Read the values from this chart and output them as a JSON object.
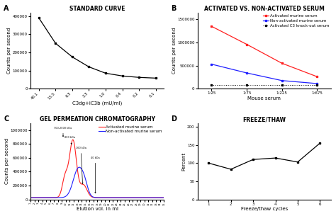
{
  "panel_A": {
    "title": "STANDARD CURVE",
    "xlabel": "C3dg+iC3b (mU/ml)",
    "ylabel": "Counts per second",
    "x_positions": [
      0,
      1,
      2,
      3,
      4,
      5,
      6,
      7
    ],
    "x_labels": [
      "40.1",
      "13.5",
      "6.5",
      "2.5",
      "1.0",
      "0.4",
      "0.2",
      "0.1"
    ],
    "y": [
      390000,
      250000,
      175000,
      120000,
      85000,
      70000,
      62000,
      58000
    ],
    "yticks": [
      0,
      100000,
      200000,
      300000,
      400000
    ],
    "ytick_labels": [
      "0",
      "100000",
      "200000",
      "300000",
      "400000"
    ],
    "ylim": [
      0,
      420000
    ],
    "color": "#000000"
  },
  "panel_B": {
    "title": "ACTIVATED VS. NON-ACTIVATED SERUM",
    "xlabel": "Mouse serum",
    "ylabel": "Counts per second",
    "xtick_labels": [
      "1:25",
      "1:75",
      "1:225",
      "1:675"
    ],
    "activated": [
      1350000,
      960000,
      550000,
      260000
    ],
    "nonactivated": [
      530000,
      340000,
      175000,
      110000
    ],
    "knockout": [
      75000,
      75000,
      75000,
      75000
    ],
    "yticks": [
      0,
      500000,
      1000000,
      1500000
    ],
    "ytick_labels": [
      "0",
      "500000",
      "1000000",
      "1500000"
    ],
    "ylim": [
      0,
      1650000
    ],
    "color_activated": "#FF2020",
    "color_nonactivated": "#2020FF",
    "color_knockout": "#000000",
    "legend_activated": "Activated murine serum",
    "legend_nonactivated": "Non-activated murine serum",
    "legend_knockout": "Activated C3 knock-out serum"
  },
  "panel_C": {
    "title": "GEL PERMEATION CHROMATOGRAPHY",
    "xlabel": "Elution vol. in ml",
    "ylabel": "Counts per second",
    "yticks": [
      0,
      200000,
      400000,
      600000,
      800000,
      1000000
    ],
    "ytick_labels": [
      "0",
      "200000",
      "400000",
      "600000",
      "800000",
      "1000000"
    ],
    "ylim": [
      0,
      1100000
    ],
    "color_activated": "#FF2020",
    "color_nonactivated": "#2020FF",
    "legend_activated": "Activated murine serum",
    "legend_nonactivated": "Non-activated murine serum"
  },
  "panel_D": {
    "title": "FREEZE/THAW",
    "xlabel": "Freeze/thaw cycles",
    "ylabel": "Percent",
    "x": [
      1,
      2,
      3,
      4,
      5,
      6
    ],
    "y": [
      100,
      83,
      110,
      114,
      103,
      155
    ],
    "yticks": [
      0,
      50,
      100,
      150,
      200
    ],
    "ytick_labels": [
      "0",
      "50",
      "100",
      "150",
      "200"
    ],
    "ylim": [
      0,
      210
    ],
    "xlim": [
      0.5,
      6.5
    ],
    "color": "#000000"
  },
  "label_fontsize": 5,
  "title_fontsize": 5.5,
  "tick_fontsize": 4,
  "legend_fontsize": 4
}
